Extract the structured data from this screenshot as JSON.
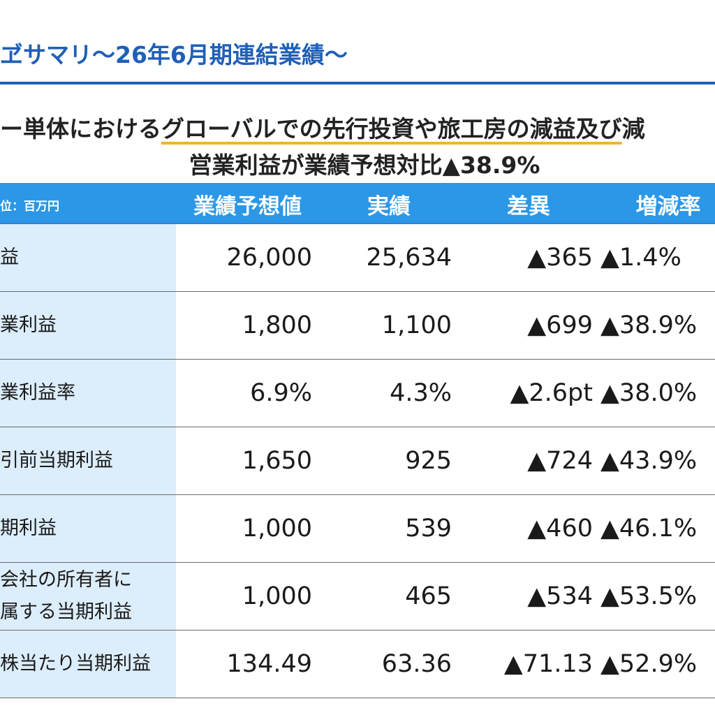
{
  "title": "ヹサマリ～26年6月期連結業績～",
  "headline": {
    "prefix": "ー単体における",
    "highlight": "グローバルでの先行投資や旅工房の減益及び",
    "suffix": "減"
  },
  "subline": "営業利益が業績予想対比▲38.9%",
  "table": {
    "unit": "位：百万円",
    "headers": [
      "業績予想値",
      "実績",
      "差異",
      "増減率"
    ],
    "rows": [
      {
        "label": "益",
        "label2": "",
        "forecast": "26,000",
        "actual": "25,634",
        "diff": "▲365",
        "rate": "▲1.4%"
      },
      {
        "label": "業利益",
        "label2": "",
        "forecast": "1,800",
        "actual": "1,100",
        "diff": "▲699",
        "rate": "▲38.9%"
      },
      {
        "label": "業利益率",
        "label2": "",
        "forecast": "6.9%",
        "actual": "4.3%",
        "diff": "▲2.6pt",
        "rate": "▲38.0%"
      },
      {
        "label": "引前当期利益",
        "label2": "",
        "forecast": "1,650",
        "actual": "925",
        "diff": "▲724",
        "rate": "▲43.9%"
      },
      {
        "label": "期利益",
        "label2": "",
        "forecast": "1,000",
        "actual": "539",
        "diff": "▲460",
        "rate": "▲46.1%"
      },
      {
        "label": "会社の所有者に",
        "label2": "属する当期利益",
        "forecast": "1,000",
        "actual": "465",
        "diff": "▲534",
        "rate": "▲53.5%"
      },
      {
        "label": "株当たり当期利益",
        "label2": "",
        "forecast": "134.49",
        "actual": "63.36",
        "diff": "▲71.13",
        "rate": "▲52.9%"
      }
    ]
  }
}
